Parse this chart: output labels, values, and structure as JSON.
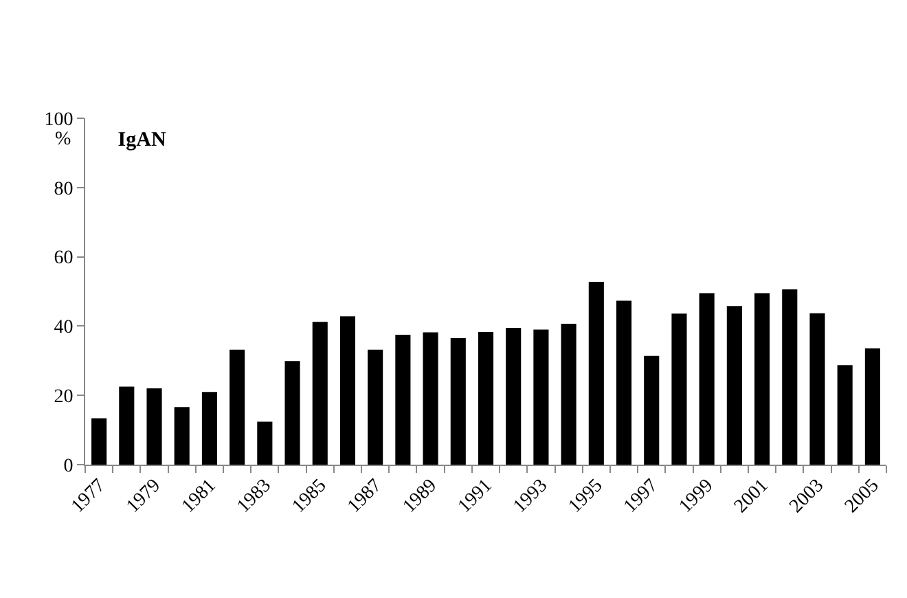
{
  "chart_data": {
    "type": "bar",
    "title": "IgAN",
    "ylabel": "%",
    "categories": [
      "1977",
      null,
      "1979",
      null,
      "1981",
      null,
      "1983",
      null,
      "1985",
      null,
      "1987",
      null,
      "1989",
      null,
      "1991",
      null,
      "1993",
      null,
      "1995",
      null,
      "1997",
      null,
      "1999",
      null,
      "2001",
      null,
      "2003",
      null,
      "2005"
    ],
    "values": [
      13.4,
      22.5,
      22,
      16.6,
      21,
      33.2,
      12.4,
      29.9,
      41.2,
      42.8,
      33.2,
      37.5,
      38.2,
      36.5,
      38.3,
      39.5,
      39,
      40.7,
      52.8,
      47.3,
      31.4,
      43.6,
      49.5,
      45.8,
      49.5,
      50.6,
      43.7,
      28.7,
      33.6
    ],
    "color": "#000000",
    "ylim": [
      0,
      100
    ],
    "yticks": [
      0,
      20,
      40,
      60,
      80,
      100
    ]
  }
}
